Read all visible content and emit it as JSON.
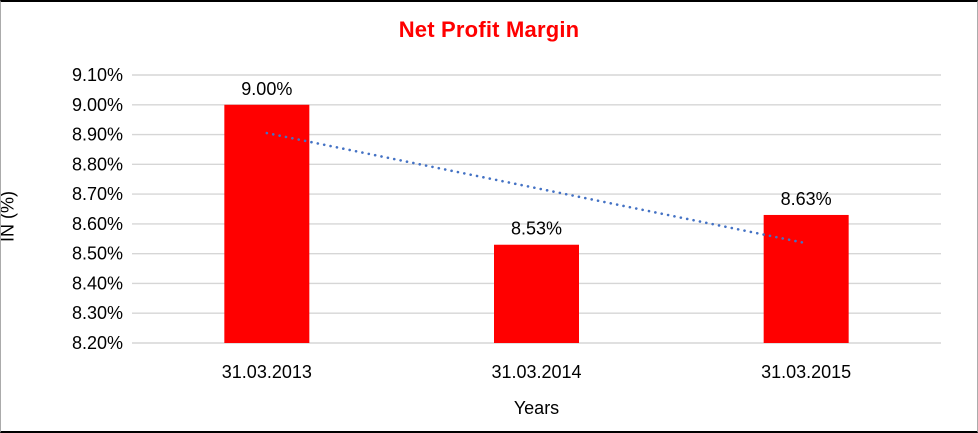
{
  "chart_data": {
    "type": "bar",
    "title": "Net Profit Margin",
    "xlabel": "Years",
    "ylabel": "IN (%)",
    "categories": [
      "31.03.2013",
      "31.03.2014",
      "31.03.2015"
    ],
    "series": [
      {
        "name": "Net Profit Margin",
        "values": [
          9.0,
          8.53,
          8.63
        ]
      }
    ],
    "data_labels": [
      "9.00%",
      "8.53%",
      "8.63%"
    ],
    "ytick_labels": [
      "8.20%",
      "8.30%",
      "8.40%",
      "8.50%",
      "8.60%",
      "8.70%",
      "8.80%",
      "8.90%",
      "9.00%",
      "9.10%"
    ],
    "ylim": [
      8.2,
      9.1
    ],
    "ytick_step": 0.1,
    "grid": true,
    "legend": "none",
    "trendline": {
      "style": "dotted",
      "color": "#4472C4",
      "start_value": 8.905,
      "end_value": 8.535
    },
    "colors": {
      "bar": "#FF0000",
      "title": "#FF0000",
      "gridline": "#D6D6D6",
      "text": "#000000"
    }
  }
}
